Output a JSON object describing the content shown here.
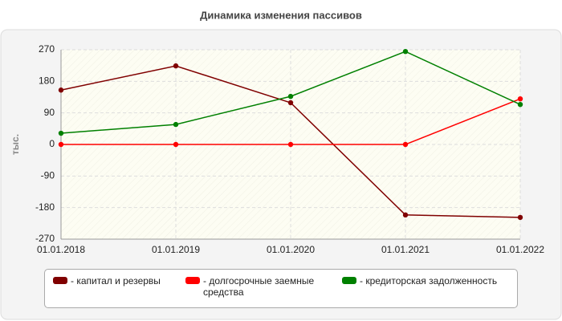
{
  "chart_data": {
    "type": "line",
    "title": "Динамика изменения пассивов",
    "y_label": "тыс.",
    "categories": [
      "01.01.2018",
      "01.01.2019",
      "01.01.2020",
      "01.01.2021",
      "01.01.2022"
    ],
    "series": [
      {
        "name": "- капитал и резервы",
        "color": "#800000",
        "values": [
          155,
          224,
          119,
          -201,
          -208
        ]
      },
      {
        "name": "- долгосрочные заемные средства",
        "color": "#ff0000",
        "values": [
          0,
          0,
          0,
          0,
          130
        ]
      },
      {
        "name": "- кредиторская задолженность",
        "color": "#008000",
        "values": [
          32,
          57,
          137,
          265,
          114
        ]
      }
    ],
    "ylim": [
      -270,
      270
    ],
    "yticks": [
      -270,
      -180,
      -90,
      0,
      90,
      180,
      270
    ],
    "grid": true
  }
}
